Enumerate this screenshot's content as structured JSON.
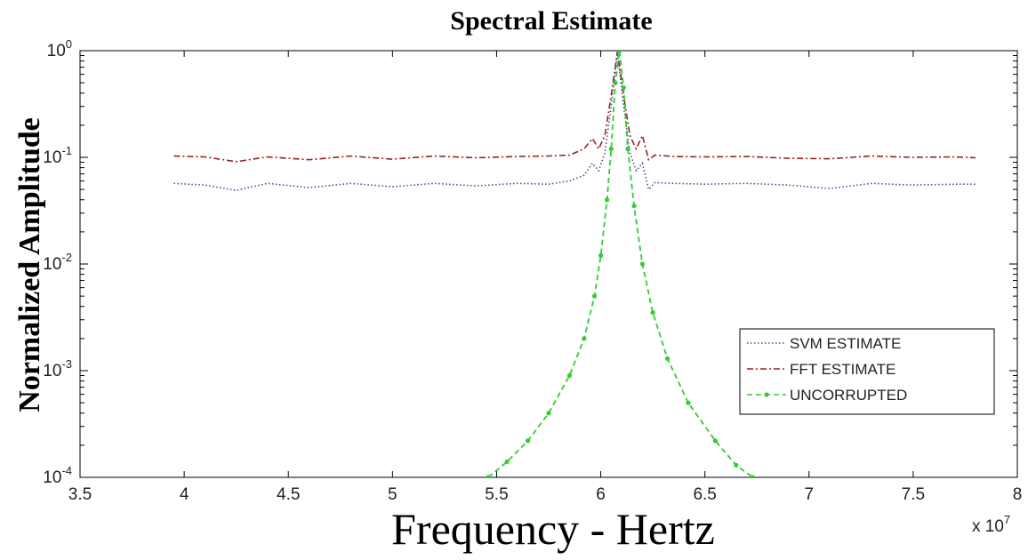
{
  "chart_data": {
    "type": "line",
    "title": "Spectral Estimate",
    "xlabel": "Frequency - Hertz",
    "ylabel": "Normalized Amplitude",
    "x_multiplier": "x 10",
    "x_multiplier_exp": "7",
    "xlim": [
      3.5,
      8
    ],
    "ylim": [
      0.0001,
      1
    ],
    "yscale": "log",
    "x_ticks": [
      "3.5",
      "4",
      "4.5",
      "5",
      "5.5",
      "6",
      "6.5",
      "7",
      "7.5",
      "8"
    ],
    "y_ticks": [
      {
        "base": "10",
        "exp": "-4",
        "value": 0.0001
      },
      {
        "base": "10",
        "exp": "-3",
        "value": 0.001
      },
      {
        "base": "10",
        "exp": "-2",
        "value": 0.01
      },
      {
        "base": "10",
        "exp": "-1",
        "value": 0.1
      },
      {
        "base": "10",
        "exp": "0",
        "value": 1
      }
    ],
    "grid": false,
    "legend_position": "lower-right",
    "series": [
      {
        "name": "SVM ESTIMATE",
        "color": "#4a4a9c",
        "style": "dotted",
        "x": [
          3.95,
          4.1,
          4.25,
          4.4,
          4.6,
          4.8,
          5.0,
          5.2,
          5.4,
          5.6,
          5.75,
          5.85,
          5.92,
          5.96,
          5.99,
          6.02,
          6.05,
          6.08,
          6.11,
          6.14,
          6.17,
          6.2,
          6.23,
          6.26,
          6.35,
          6.5,
          6.7,
          6.9,
          7.1,
          7.3,
          7.5,
          7.7,
          7.8
        ],
        "values": [
          0.057,
          0.055,
          0.049,
          0.057,
          0.052,
          0.057,
          0.053,
          0.057,
          0.054,
          0.057,
          0.056,
          0.06,
          0.068,
          0.088,
          0.075,
          0.11,
          0.3,
          0.95,
          0.3,
          0.11,
          0.075,
          0.088,
          0.05,
          0.058,
          0.057,
          0.056,
          0.057,
          0.055,
          0.051,
          0.057,
          0.055,
          0.056,
          0.056
        ]
      },
      {
        "name": "FFT ESTIMATE",
        "color": "#9c2020",
        "style": "dashdot",
        "x": [
          3.95,
          4.1,
          4.25,
          4.4,
          4.6,
          4.8,
          5.0,
          5.2,
          5.4,
          5.6,
          5.75,
          5.85,
          5.92,
          5.96,
          5.99,
          6.02,
          6.05,
          6.08,
          6.11,
          6.14,
          6.17,
          6.2,
          6.23,
          6.26,
          6.35,
          6.5,
          6.7,
          6.9,
          7.1,
          7.3,
          7.5,
          7.7,
          7.8
        ],
        "values": [
          0.103,
          0.101,
          0.091,
          0.101,
          0.095,
          0.103,
          0.096,
          0.103,
          0.099,
          0.102,
          0.103,
          0.105,
          0.12,
          0.15,
          0.12,
          0.16,
          0.38,
          0.98,
          0.38,
          0.16,
          0.12,
          0.16,
          0.095,
          0.105,
          0.102,
          0.101,
          0.102,
          0.098,
          0.097,
          0.103,
          0.1,
          0.101,
          0.099
        ]
      },
      {
        "name": "UNCORRUPTED",
        "color": "#33cc33",
        "style": "dashed-markers",
        "x": [
          5.46,
          5.55,
          5.65,
          5.75,
          5.85,
          5.92,
          5.97,
          6.0,
          6.03,
          6.05,
          6.07,
          6.09,
          6.11,
          6.13,
          6.16,
          6.2,
          6.25,
          6.32,
          6.42,
          6.55,
          6.65,
          6.73
        ],
        "values": [
          0.0001,
          0.00014,
          0.00022,
          0.0004,
          0.0009,
          0.002,
          0.005,
          0.012,
          0.04,
          0.12,
          0.5,
          1.0,
          0.45,
          0.12,
          0.035,
          0.01,
          0.0035,
          0.0013,
          0.0005,
          0.00022,
          0.00013,
          0.0001
        ]
      }
    ]
  }
}
